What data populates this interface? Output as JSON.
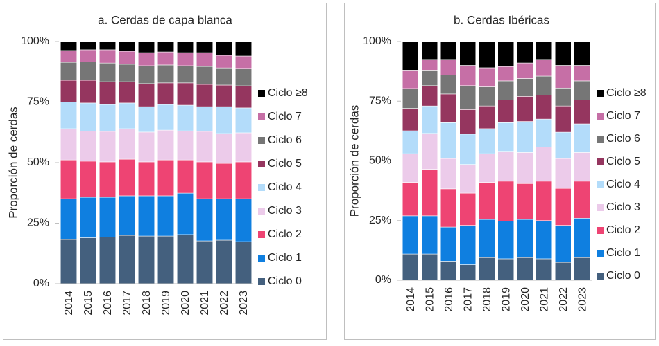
{
  "chart_data": [
    {
      "type": "bar",
      "stacked": true,
      "title": "a. Cerdas de capa blanca",
      "y_label": "Proporción de cerdas",
      "categories": [
        "2014",
        "2015",
        "2016",
        "2017",
        "2018",
        "2019",
        "2020",
        "2021",
        "2022",
        "2023"
      ],
      "ylim": [
        0,
        100
      ],
      "yticks": [
        {
          "value": 0,
          "label": "0%"
        },
        {
          "value": 25,
          "label": "25%"
        },
        {
          "value": 50,
          "label": "50%"
        },
        {
          "value": 75,
          "label": "75%"
        },
        {
          "value": 100,
          "label": "100%"
        }
      ],
      "series": [
        {
          "name": "Ciclo 0",
          "color": "#44607e",
          "values": [
            18.3,
            19.0,
            19.3,
            20.0,
            19.7,
            19.7,
            20.3,
            17.7,
            18.0,
            17.4
          ]
        },
        {
          "name": "Ciclo 1",
          "color": "#0f7fe0",
          "values": [
            16.8,
            16.7,
            16.4,
            16.3,
            16.6,
            16.6,
            17.1,
            17.4,
            17.1,
            17.7
          ]
        },
        {
          "name": "Ciclo 2",
          "color": "#ee4473",
          "values": [
            16.0,
            14.9,
            14.6,
            15.1,
            14.0,
            14.8,
            13.7,
            15.2,
            14.6,
            15.2
          ]
        },
        {
          "name": "Ciclo 3",
          "color": "#eccbea",
          "values": [
            12.9,
            12.4,
            12.6,
            12.6,
            12.3,
            12.3,
            12.0,
            12.6,
            12.3,
            12.0
          ]
        },
        {
          "name": "Ciclo 4",
          "color": "#b3dcfa",
          "values": [
            11.0,
            11.6,
            11.1,
            10.6,
            10.5,
            10.6,
            10.6,
            10.2,
            11.1,
            10.3
          ]
        },
        {
          "name": "Ciclo 5",
          "color": "#95365f",
          "values": [
            9.0,
            9.4,
            9.4,
            8.8,
            9.5,
            8.9,
            9.2,
            9.2,
            8.9,
            9.1
          ]
        },
        {
          "name": "Ciclo 6",
          "color": "#767676",
          "values": [
            7.4,
            7.6,
            7.7,
            7.2,
            7.4,
            7.4,
            7.1,
            7.4,
            7.1,
            7.2
          ]
        },
        {
          "name": "Ciclo 7",
          "color": "#c66fa6",
          "values": [
            4.9,
            5.0,
            5.5,
            5.4,
            5.4,
            5.4,
            5.4,
            5.7,
            5.2,
            5.1
          ]
        },
        {
          "name": "Ciclo ≥8",
          "color": "#000000",
          "values": [
            3.7,
            3.4,
            3.4,
            4.0,
            4.6,
            4.3,
            4.6,
            4.6,
            5.7,
            6.0
          ]
        }
      ]
    },
    {
      "type": "bar",
      "stacked": true,
      "title": "b. Cerdas Ibéricas",
      "y_label": "Proporción de cerdas",
      "categories": [
        "2014",
        "2015",
        "2016",
        "2017",
        "2018",
        "2019",
        "2020",
        "2021",
        "2022",
        "2023"
      ],
      "ylim": [
        0,
        100
      ],
      "yticks": [
        {
          "value": 0,
          "label": "0%"
        },
        {
          "value": 25,
          "label": "25%"
        },
        {
          "value": 50,
          "label": "50%"
        },
        {
          "value": 75,
          "label": "75%"
        },
        {
          "value": 100,
          "label": "100%"
        }
      ],
      "series": [
        {
          "name": "Ciclo 0",
          "color": "#44607e",
          "values": [
            11,
            11,
            8,
            6.5,
            9.5,
            9,
            9.5,
            9,
            7.5,
            9.5
          ]
        },
        {
          "name": "Ciclo 1",
          "color": "#0f7fe0",
          "values": [
            16,
            16,
            14.3,
            16.5,
            16,
            15.8,
            16,
            16,
            15.5,
            16.5
          ]
        },
        {
          "name": "Ciclo 2",
          "color": "#ee4473",
          "values": [
            14,
            19.5,
            16,
            13.5,
            15.5,
            16.7,
            15,
            16.5,
            15.5,
            15.5
          ]
        },
        {
          "name": "Ciclo 3",
          "color": "#eccbea",
          "values": [
            12,
            15,
            12.7,
            12,
            12,
            12.5,
            13,
            14.3,
            12.5,
            12
          ]
        },
        {
          "name": "Ciclo 4",
          "color": "#b3dcfa",
          "values": [
            9.6,
            11.5,
            15,
            12.7,
            10.5,
            12,
            13,
            11.7,
            11,
            12
          ]
        },
        {
          "name": "Ciclo 5",
          "color": "#95365f",
          "values": [
            9.4,
            8.5,
            12,
            10.3,
            9.5,
            9.5,
            10.5,
            10,
            11,
            10
          ]
        },
        {
          "name": "Ciclo 6",
          "color": "#767676",
          "values": [
            8.3,
            6.5,
            8,
            10,
            8,
            8,
            7.5,
            8,
            7.5,
            8
          ]
        },
        {
          "name": "Ciclo 7",
          "color": "#c66fa6",
          "values": [
            7.7,
            4.5,
            6.5,
            8.5,
            8,
            6,
            6.5,
            7,
            9.5,
            6.5
          ]
        },
        {
          "name": "Ciclo ≥8",
          "color": "#000000",
          "values": [
            12,
            7.5,
            7.5,
            10,
            11,
            10.5,
            9,
            7.5,
            10,
            10
          ]
        }
      ]
    }
  ]
}
